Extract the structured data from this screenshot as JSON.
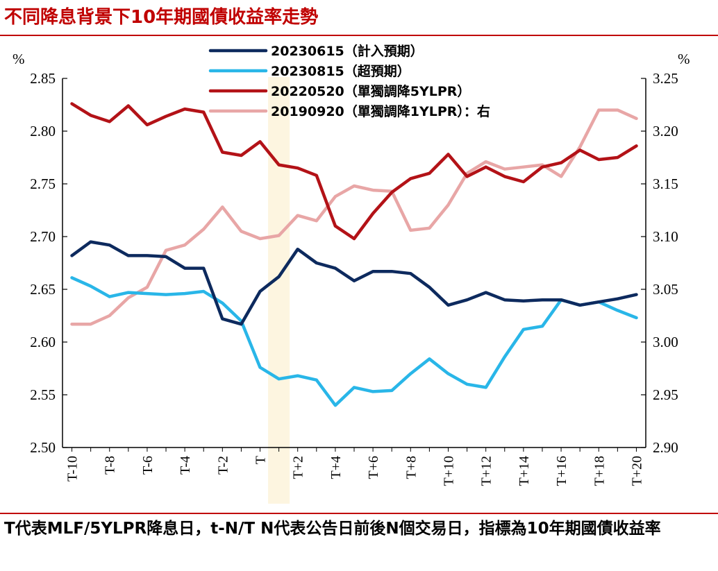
{
  "title": "不同降息背景下10年期國債收益率走勢",
  "footnote": "T代表MLF/5YLPR降息日，t-N/T N代表公告日前後N個交易日，指標為10年期國債收益率",
  "chart_data": {
    "type": "line",
    "left_unit": "%",
    "right_unit": "%",
    "left_ylim": [
      2.5,
      2.85
    ],
    "right_ylim": [
      2.9,
      3.25
    ],
    "left_ticks": [
      "2.50",
      "2.55",
      "2.60",
      "2.65",
      "2.70",
      "2.75",
      "2.80",
      "2.85"
    ],
    "right_ticks": [
      "2.90",
      "2.95",
      "3.00",
      "3.05",
      "3.10",
      "3.15",
      "3.20",
      "3.25"
    ],
    "x_tick_labels": [
      "T-10",
      "T-8",
      "T-6",
      "T-4",
      "T-2",
      "T",
      "T+2",
      "T+4",
      "T+6",
      "T+8",
      "T+10",
      "T+12",
      "T+14",
      "T+16",
      "T+18",
      "T+20"
    ],
    "x": [
      -10,
      -9,
      -8,
      -7,
      -6,
      -5,
      -4,
      -3,
      -2,
      -1,
      0,
      1,
      2,
      3,
      4,
      5,
      6,
      7,
      8,
      9,
      10,
      11,
      12,
      13,
      14,
      15,
      16,
      17,
      18,
      19,
      20
    ],
    "highlight_x": 1,
    "series": [
      {
        "name": "20230615（計入預期）",
        "color": "#0d2a5e",
        "axis": "left",
        "values": [
          2.682,
          2.695,
          2.692,
          2.682,
          2.682,
          2.681,
          2.67,
          2.67,
          2.622,
          2.617,
          2.648,
          2.662,
          2.688,
          2.675,
          2.67,
          2.658,
          2.667,
          2.667,
          2.665,
          2.652,
          2.635,
          2.64,
          2.647,
          2.64,
          2.639,
          2.64,
          2.64,
          2.635,
          2.638,
          2.641,
          2.645
        ]
      },
      {
        "name": "20230815（超預期）",
        "color": "#29b6e8",
        "axis": "left",
        "values": [
          2.661,
          2.653,
          2.643,
          2.647,
          2.646,
          2.645,
          2.646,
          2.648,
          2.637,
          2.62,
          2.576,
          2.565,
          2.568,
          2.564,
          2.54,
          2.557,
          2.553,
          2.554,
          2.57,
          2.584,
          2.57,
          2.56,
          2.557,
          2.586,
          2.612,
          2.615,
          2.64,
          2.635,
          2.638,
          2.63,
          2.623
        ]
      },
      {
        "name": "20220520（單獨調降5YLPR）",
        "color": "#b31217",
        "axis": "left",
        "values": [
          2.826,
          2.815,
          2.809,
          2.824,
          2.806,
          2.814,
          2.821,
          2.818,
          2.78,
          2.777,
          2.79,
          2.768,
          2.765,
          2.758,
          2.71,
          2.698,
          2.722,
          2.742,
          2.755,
          2.76,
          2.778,
          2.757,
          2.766,
          2.757,
          2.752,
          2.766,
          2.77,
          2.782,
          2.773,
          2.775,
          2.786
        ]
      },
      {
        "name": "20190920（單獨調降1YLPR）：右",
        "color": "#e8a6a6",
        "axis": "right",
        "values": [
          3.017,
          3.017,
          3.025,
          3.042,
          3.052,
          3.087,
          3.092,
          3.107,
          3.128,
          3.105,
          3.098,
          3.101,
          3.12,
          3.115,
          3.138,
          3.148,
          3.144,
          3.143,
          3.106,
          3.108,
          3.13,
          3.16,
          3.171,
          3.164,
          3.166,
          3.168,
          3.157,
          3.185,
          3.22,
          3.22,
          3.212
        ]
      }
    ]
  }
}
